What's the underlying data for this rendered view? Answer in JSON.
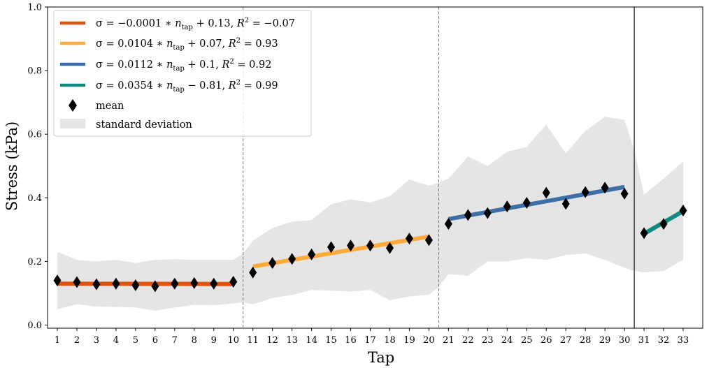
{
  "chart_data": {
    "type": "line",
    "xlabel": "Tap",
    "ylabel": "Stress (kPa)",
    "xlim": [
      0.5,
      34
    ],
    "ylim": [
      -0.01,
      1.0
    ],
    "yticks": [
      0.0,
      0.2,
      0.4,
      0.6,
      0.8,
      1.0
    ],
    "ytick_labels": [
      "0.0",
      "0.2",
      "0.4",
      "0.6",
      "0.8",
      "1.0"
    ],
    "xticks": [
      1,
      2,
      3,
      4,
      5,
      6,
      7,
      8,
      9,
      10,
      11,
      12,
      13,
      14,
      15,
      16,
      17,
      18,
      19,
      20,
      21,
      22,
      23,
      24,
      25,
      26,
      27,
      28,
      29,
      30,
      31,
      32,
      33
    ],
    "xtick_labels": [
      "1",
      "2",
      "3",
      "4",
      "5",
      "6",
      "7",
      "8",
      "9",
      "10",
      "11",
      "12",
      "13",
      "14",
      "15",
      "16",
      "17",
      "18",
      "19",
      "20",
      "21",
      "22",
      "23",
      "24",
      "25",
      "26",
      "27",
      "28",
      "29",
      "30",
      "31",
      "32",
      "33"
    ],
    "grid": false,
    "legend_position": "top-left",
    "mean": {
      "name": "mean",
      "color": "#000000",
      "x": [
        1,
        2,
        3,
        4,
        5,
        6,
        7,
        8,
        9,
        10,
        11,
        12,
        13,
        14,
        15,
        16,
        17,
        18,
        19,
        20,
        21,
        22,
        23,
        24,
        25,
        26,
        27,
        28,
        29,
        30,
        31,
        32,
        33
      ],
      "y": [
        0.14,
        0.135,
        0.128,
        0.13,
        0.125,
        0.122,
        0.13,
        0.132,
        0.13,
        0.136,
        0.165,
        0.195,
        0.208,
        0.222,
        0.245,
        0.25,
        0.25,
        0.242,
        0.272,
        0.267,
        0.318,
        0.346,
        0.352,
        0.373,
        0.384,
        0.416,
        0.381,
        0.418,
        0.432,
        0.413,
        0.289,
        0.318,
        0.36
      ]
    },
    "std_band": {
      "name": "standard deviation",
      "color": "#e5e5e5",
      "x": [
        1,
        2,
        3,
        4,
        5,
        6,
        7,
        8,
        9,
        10,
        10.5,
        11,
        12,
        13,
        14,
        15,
        16,
        17,
        18,
        19,
        20,
        20.5,
        21,
        22,
        23,
        24,
        25,
        26,
        27,
        28,
        29,
        30,
        30.5,
        31,
        32,
        33
      ],
      "upper": [
        0.23,
        0.205,
        0.2,
        0.205,
        0.195,
        0.205,
        0.207,
        0.205,
        0.205,
        0.205,
        0.225,
        0.265,
        0.305,
        0.325,
        0.33,
        0.38,
        0.395,
        0.385,
        0.405,
        0.457,
        0.438,
        0.448,
        0.46,
        0.53,
        0.5,
        0.545,
        0.56,
        0.63,
        0.54,
        0.61,
        0.655,
        0.645,
        0.55,
        0.41,
        0.46,
        0.515
      ],
      "lower": [
        0.05,
        0.065,
        0.058,
        0.057,
        0.055,
        0.045,
        0.055,
        0.063,
        0.062,
        0.068,
        0.072,
        0.065,
        0.085,
        0.095,
        0.11,
        0.108,
        0.105,
        0.11,
        0.078,
        0.09,
        0.095,
        0.12,
        0.16,
        0.155,
        0.2,
        0.2,
        0.21,
        0.205,
        0.22,
        0.225,
        0.205,
        0.18,
        0.17,
        0.165,
        0.17,
        0.205
      ]
    },
    "fits": [
      {
        "name": "σ = −0.0001 ∗ n_tap + 0.13, R² = −0.07",
        "color": "#e0520f",
        "x": [
          1,
          10
        ],
        "y": [
          0.13,
          0.129
        ]
      },
      {
        "name": "σ = 0.0104 ∗ n_tap + 0.07, R² = 0.93",
        "color": "#fcab3c",
        "x": [
          11,
          20
        ],
        "y": [
          0.184,
          0.278
        ]
      },
      {
        "name": "σ = 0.0112 ∗ n_tap + 0.1, R² = 0.92",
        "color": "#3d6fa6",
        "x": [
          21,
          30
        ],
        "y": [
          0.333,
          0.434
        ]
      },
      {
        "name": "σ = 0.0354 ∗ n_tap − 0.81, R² = 0.99",
        "color": "#128a80",
        "x": [
          31,
          33
        ],
        "y": [
          0.287,
          0.358
        ]
      }
    ],
    "vlines": [
      {
        "x": 10.5,
        "style": "dashed"
      },
      {
        "x": 20.5,
        "style": "dashed"
      },
      {
        "x": 30.5,
        "style": "solid"
      }
    ]
  },
  "legend": {
    "fit1": {
      "prefix": "σ = −0.0001 ∗ ",
      "var": "n",
      "sub": "tap",
      "mid": " + 0.13, ",
      "r": "R",
      "sup": "2",
      "suffix": " = −0.07"
    },
    "fit2": {
      "prefix": "σ = 0.0104 ∗ ",
      "var": "n",
      "sub": "tap",
      "mid": " + 0.07, ",
      "r": "R",
      "sup": "2",
      "suffix": " = 0.93"
    },
    "fit3": {
      "prefix": "σ = 0.0112 ∗ ",
      "var": "n",
      "sub": "tap",
      "mid": " + 0.1, ",
      "r": "R",
      "sup": "2",
      "suffix": " = 0.92"
    },
    "fit4": {
      "prefix": "σ = 0.0354 ∗ ",
      "var": "n",
      "sub": "tap",
      "mid": " − 0.81, ",
      "r": "R",
      "sup": "2",
      "suffix": " = 0.99"
    },
    "mean_label": "mean",
    "std_label": "standard deviation"
  }
}
